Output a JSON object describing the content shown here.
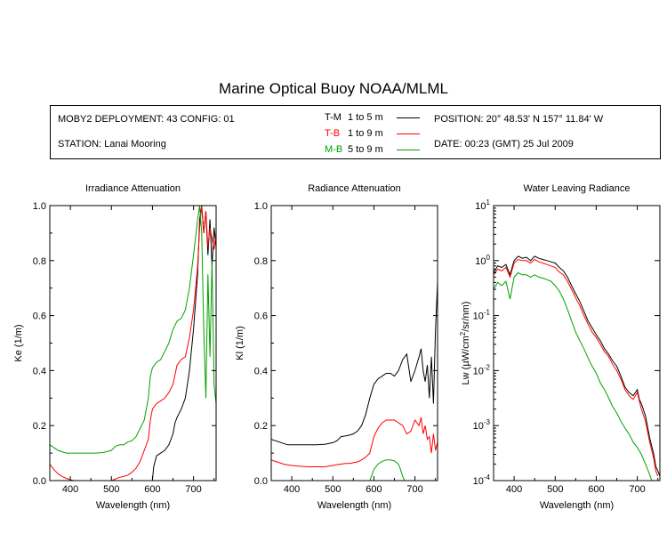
{
  "title": "Marine Optical Buoy NOAA/MLML",
  "info": {
    "deployment": "MOBY2 DEPLOYMENT: 43 CONFIG: 01",
    "station": "STATION: Lanai Mooring",
    "position": "POSITION: 20° 48.53' N   157° 11.84' W",
    "date": "DATE: 00:23 (GMT) 25 Jul 2009"
  },
  "legend": [
    {
      "code": "T-M",
      "range": "1 to 5  m",
      "color": "#000000"
    },
    {
      "code": "T-B",
      "range": "1 to 9  m",
      "color": "#ff0000"
    },
    {
      "code": "M-B",
      "range": "5 to 9  m",
      "color": "#00a000"
    }
  ],
  "chart_data": [
    {
      "type": "line",
      "title": "Irradiance Attenuation",
      "xlabel": "Wavelength (nm)",
      "ylabel": "Ke  (1/m)",
      "xlim": [
        350,
        755
      ],
      "ylim": [
        0,
        1.0
      ],
      "xticks": [
        "400",
        "500",
        "600",
        "700"
      ],
      "yticks": [
        "0.0",
        "0.2",
        "0.4",
        "0.6",
        "0.8",
        "1.0"
      ],
      "series": [
        {
          "name": "T-M",
          "color": "#000000",
          "x": [
            600,
            603,
            610,
            620,
            630,
            640,
            650,
            655,
            660,
            670,
            680,
            690,
            700,
            710,
            715,
            720,
            725,
            730,
            735,
            740,
            745,
            750,
            755
          ],
          "y": [
            0.0,
            0.05,
            0.09,
            0.1,
            0.11,
            0.13,
            0.17,
            0.21,
            0.23,
            0.26,
            0.3,
            0.4,
            0.55,
            0.75,
            0.95,
            1.0,
            0.9,
            0.98,
            0.82,
            0.95,
            0.78,
            0.92,
            0.85
          ]
        },
        {
          "name": "T-B",
          "color": "#ff0000",
          "x": [
            350,
            360,
            370,
            380,
            390,
            400,
            410,
            420,
            430,
            440,
            450,
            460,
            470,
            480,
            490,
            500,
            510,
            520,
            530,
            540,
            550,
            560,
            570,
            580,
            590,
            595,
            600,
            605,
            610,
            620,
            630,
            640,
            650,
            660,
            670,
            680,
            690,
            700,
            710,
            715,
            720,
            725,
            730,
            735,
            740,
            745,
            750,
            755
          ],
          "y": [
            0.06,
            0.04,
            0.025,
            0.015,
            0.008,
            0.003,
            0.0,
            0.0,
            0.0,
            0.0,
            0.0,
            0.0,
            0.0,
            0.0,
            0.0,
            0.0,
            0.006,
            0.012,
            0.015,
            0.02,
            0.03,
            0.045,
            0.07,
            0.11,
            0.15,
            0.22,
            0.26,
            0.27,
            0.28,
            0.29,
            0.3,
            0.32,
            0.35,
            0.42,
            0.44,
            0.45,
            0.52,
            0.62,
            0.78,
            0.92,
            1.0,
            0.9,
            0.98,
            0.85,
            0.92,
            0.88,
            0.84,
            0.9
          ]
        },
        {
          "name": "M-B",
          "color": "#00a000",
          "x": [
            350,
            360,
            370,
            380,
            390,
            400,
            420,
            440,
            460,
            480,
            500,
            510,
            520,
            530,
            540,
            550,
            560,
            570,
            580,
            590,
            595,
            600,
            605,
            610,
            620,
            630,
            640,
            650,
            660,
            670,
            680,
            690,
            700,
            710,
            715,
            720,
            725,
            730,
            735,
            740,
            745,
            750,
            755
          ],
          "y": [
            0.13,
            0.12,
            0.11,
            0.105,
            0.1,
            0.1,
            0.1,
            0.1,
            0.1,
            0.102,
            0.11,
            0.125,
            0.13,
            0.13,
            0.14,
            0.145,
            0.16,
            0.19,
            0.22,
            0.3,
            0.38,
            0.41,
            0.42,
            0.43,
            0.44,
            0.47,
            0.5,
            0.55,
            0.58,
            0.59,
            0.62,
            0.7,
            0.82,
            0.95,
            1.0,
            0.9,
            0.55,
            0.3,
            0.75,
            0.45,
            0.8,
            0.35,
            0.28
          ]
        }
      ]
    },
    {
      "type": "line",
      "title": "Radiance Attenuation",
      "xlabel": "Wavelength (nm)",
      "ylabel": "Kl  (1/m)",
      "xlim": [
        350,
        755
      ],
      "ylim": [
        0,
        1.0
      ],
      "xticks": [
        "400",
        "500",
        "600",
        "700"
      ],
      "yticks": [
        "0.0",
        "0.2",
        "0.4",
        "0.6",
        "0.8",
        "1.0"
      ],
      "series": [
        {
          "name": "T-M",
          "color": "#000000",
          "x": [
            350,
            360,
            370,
            380,
            390,
            400,
            420,
            440,
            460,
            480,
            500,
            510,
            520,
            530,
            540,
            550,
            560,
            570,
            580,
            590,
            600,
            610,
            620,
            630,
            640,
            650,
            660,
            670,
            680,
            690,
            700,
            710,
            715,
            720,
            725,
            730,
            735,
            740,
            745,
            750,
            755
          ],
          "y": [
            0.15,
            0.145,
            0.14,
            0.135,
            0.13,
            0.13,
            0.13,
            0.13,
            0.13,
            0.132,
            0.138,
            0.145,
            0.16,
            0.162,
            0.165,
            0.17,
            0.18,
            0.2,
            0.24,
            0.3,
            0.35,
            0.37,
            0.38,
            0.39,
            0.39,
            0.38,
            0.4,
            0.44,
            0.46,
            0.36,
            0.4,
            0.45,
            0.48,
            0.4,
            0.36,
            0.42,
            0.3,
            0.45,
            0.28,
            0.55,
            0.72
          ]
        },
        {
          "name": "T-B",
          "color": "#ff0000",
          "x": [
            350,
            360,
            370,
            380,
            390,
            400,
            420,
            440,
            460,
            480,
            500,
            510,
            520,
            530,
            540,
            550,
            560,
            570,
            580,
            590,
            600,
            610,
            620,
            630,
            640,
            650,
            660,
            670,
            680,
            690,
            700,
            710,
            715,
            720,
            725,
            730,
            735,
            740,
            745,
            750,
            755
          ],
          "y": [
            0.075,
            0.07,
            0.065,
            0.06,
            0.057,
            0.055,
            0.052,
            0.05,
            0.05,
            0.05,
            0.055,
            0.058,
            0.06,
            0.062,
            0.062,
            0.065,
            0.068,
            0.075,
            0.085,
            0.1,
            0.16,
            0.19,
            0.21,
            0.22,
            0.22,
            0.22,
            0.21,
            0.2,
            0.17,
            0.18,
            0.22,
            0.2,
            0.23,
            0.17,
            0.2,
            0.15,
            0.16,
            0.1,
            0.17,
            0.11,
            0.14
          ]
        },
        {
          "name": "M-B",
          "color": "#00a000",
          "x": [
            590,
            595,
            600,
            610,
            620,
            630,
            640,
            650,
            660,
            665,
            670,
            675
          ],
          "y": [
            0.0,
            0.02,
            0.04,
            0.06,
            0.07,
            0.075,
            0.075,
            0.072,
            0.06,
            0.04,
            0.015,
            0.0
          ]
        }
      ]
    },
    {
      "type": "line",
      "title": "Water Leaving Radiance",
      "xlabel": "Wavelength (nm)",
      "ylabel": "Lw  (µW/cm²/sr/nm)",
      "yscale": "log",
      "xlim": [
        350,
        755
      ],
      "ylim": [
        0.0001,
        10
      ],
      "xticks": [
        "400",
        "500",
        "600",
        "700"
      ],
      "yticks": [
        {
          "base": "10",
          "exp": "1"
        },
        {
          "base": "10",
          "exp": "0"
        },
        {
          "base": "10",
          "exp": "-1"
        },
        {
          "base": "10",
          "exp": "-2"
        },
        {
          "base": "10",
          "exp": "-3"
        },
        {
          "base": "10",
          "exp": "-4"
        }
      ],
      "series": [
        {
          "name": "T-M",
          "color": "#000000",
          "x": [
            350,
            360,
            370,
            380,
            390,
            400,
            410,
            420,
            430,
            440,
            450,
            460,
            470,
            480,
            490,
            500,
            510,
            520,
            530,
            540,
            550,
            560,
            570,
            580,
            590,
            600,
            610,
            620,
            630,
            640,
            650,
            660,
            670,
            680,
            690,
            700,
            705,
            710,
            720,
            730,
            740,
            745,
            750,
            755
          ],
          "y": [
            0.6,
            0.8,
            0.75,
            0.85,
            0.55,
            1.0,
            1.2,
            1.1,
            1.15,
            1.0,
            1.2,
            1.1,
            1.05,
            1.0,
            0.95,
            0.9,
            0.75,
            0.65,
            0.5,
            0.35,
            0.25,
            0.18,
            0.12,
            0.08,
            0.06,
            0.045,
            0.035,
            0.025,
            0.02,
            0.015,
            0.012,
            0.008,
            0.005,
            0.004,
            0.0035,
            0.0045,
            0.003,
            0.0025,
            0.0015,
            0.0006,
            0.0003,
            0.00018,
            0.00015,
            0.00012
          ]
        },
        {
          "name": "T-B",
          "color": "#ff0000",
          "x": [
            350,
            360,
            370,
            380,
            390,
            400,
            410,
            420,
            430,
            440,
            450,
            460,
            470,
            480,
            490,
            500,
            510,
            520,
            530,
            540,
            550,
            560,
            570,
            580,
            590,
            600,
            610,
            620,
            630,
            640,
            650,
            660,
            670,
            680,
            690,
            700,
            705,
            710,
            720,
            730,
            740,
            745,
            750
          ],
          "y": [
            0.55,
            0.7,
            0.65,
            0.75,
            0.5,
            0.9,
            1.05,
            1.0,
            1.0,
            0.9,
            1.05,
            0.95,
            0.9,
            0.85,
            0.8,
            0.75,
            0.62,
            0.55,
            0.42,
            0.3,
            0.21,
            0.15,
            0.1,
            0.07,
            0.05,
            0.04,
            0.03,
            0.022,
            0.018,
            0.013,
            0.01,
            0.007,
            0.0045,
            0.0035,
            0.003,
            0.004,
            0.0028,
            0.002,
            0.0012,
            0.0005,
            0.00025,
            0.00015,
            0.00012
          ]
        },
        {
          "name": "M-B",
          "color": "#00a000",
          "x": [
            350,
            360,
            370,
            380,
            390,
            400,
            410,
            420,
            430,
            440,
            450,
            460,
            470,
            480,
            490,
            500,
            510,
            520,
            530,
            540,
            550,
            560,
            570,
            580,
            590,
            600,
            610,
            620,
            630,
            640,
            650,
            660,
            670,
            680,
            690,
            700,
            710,
            720,
            730,
            735
          ],
          "y": [
            0.3,
            0.4,
            0.35,
            0.42,
            0.2,
            0.5,
            0.6,
            0.55,
            0.55,
            0.5,
            0.55,
            0.5,
            0.48,
            0.45,
            0.42,
            0.35,
            0.28,
            0.2,
            0.13,
            0.08,
            0.05,
            0.035,
            0.025,
            0.017,
            0.012,
            0.009,
            0.006,
            0.0045,
            0.0032,
            0.0022,
            0.0017,
            0.0012,
            0.0009,
            0.0007,
            0.0005,
            0.0004,
            0.0003,
            0.0002,
            0.00013,
            0.0001
          ]
        }
      ]
    }
  ]
}
